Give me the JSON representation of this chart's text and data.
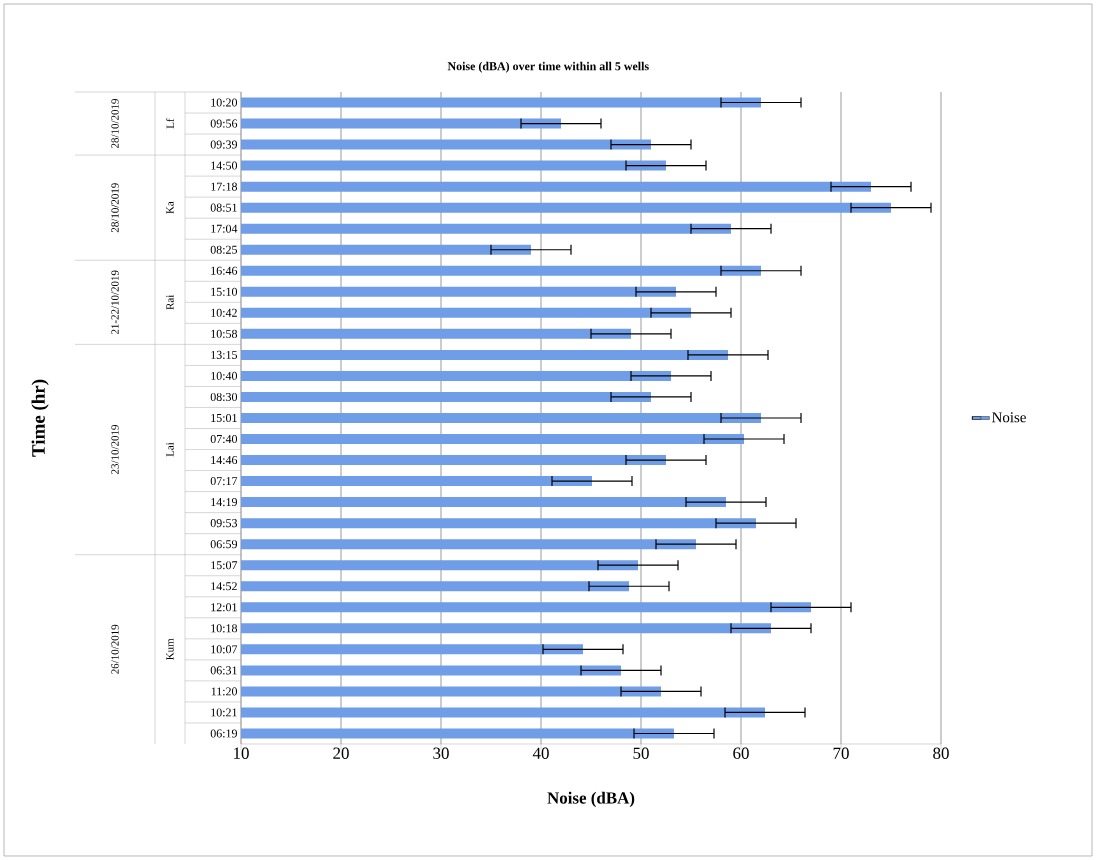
{
  "chart_data": {
    "type": "bar",
    "orientation": "horizontal",
    "title": "Noise (dBA) over time within all 5 wells",
    "xlabel": "Noise (dBA)",
    "categories": [
      "10:20",
      "09:56",
      "09:39",
      "14:50",
      "17:18",
      "08:51",
      "17:04",
      "08:25",
      "16:46",
      "15:10",
      "10:42",
      "10:58",
      "13:15",
      "10:40",
      "08:30",
      "15:01",
      "07:40",
      "14:46",
      "07:17",
      "14:19",
      "09:53",
      "06:59",
      "15:07",
      "14:52",
      "12:01",
      "10:18",
      "10:07",
      "06:31",
      "11:20",
      "10:21",
      "06:19"
    ],
    "series": [
      {
        "name": "Noise",
        "color": "#6f9de8",
        "values": [
          62,
          42,
          51,
          52.5,
          73,
          75,
          59,
          39,
          62,
          53.5,
          55,
          49,
          58.7,
          53,
          51,
          62,
          60.3,
          52.5,
          45.1,
          58.5,
          61.5,
          55.5,
          49.7,
          48.8,
          67,
          63,
          44.2,
          48,
          52,
          62.4,
          53.3
        ],
        "errors": [
          4,
          4,
          4,
          4,
          4,
          4,
          4,
          4,
          4,
          4,
          4,
          4,
          4,
          4,
          4,
          4,
          4,
          4,
          4,
          4,
          4,
          4,
          4,
          4,
          4,
          4,
          4,
          4,
          4,
          4,
          4
        ]
      }
    ],
    "xlim": [
      10,
      80
    ],
    "xticks": [
      10,
      20,
      30,
      40,
      50,
      60,
      70,
      80
    ],
    "grid": "x",
    "legend": "right",
    "annotations": [
      "Time (hr)",
      "Lf",
      "28/10/2019",
      "Ka",
      "28/10/2019",
      "Rai",
      "21-22/10/2019",
      "Lai",
      "23/10/2019",
      "Kum",
      "26/10/2019"
    ]
  }
}
